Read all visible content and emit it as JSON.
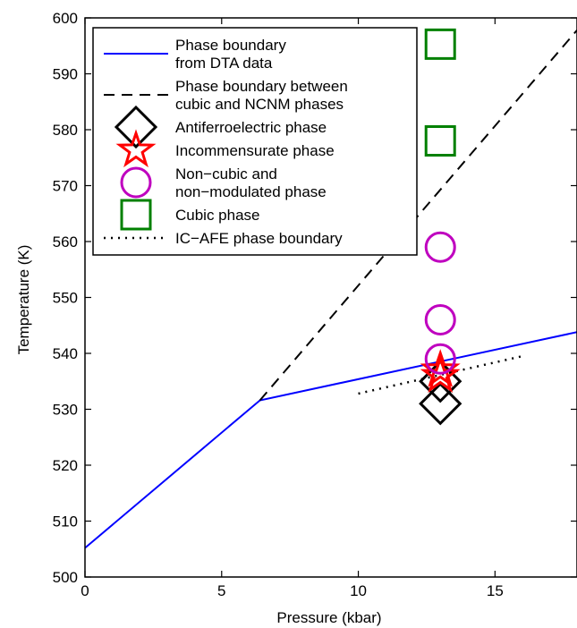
{
  "chart_data": {
    "type": "scatter",
    "xlabel": "Pressure (kbar)",
    "ylabel": "Temperature (K)",
    "xlim": [
      0,
      18
    ],
    "ylim": [
      500,
      600
    ],
    "xticks": [
      0,
      5,
      10,
      15
    ],
    "yticks": [
      500,
      510,
      520,
      530,
      540,
      550,
      560,
      570,
      580,
      590,
      600
    ],
    "grid": false,
    "legend_position": "top-left",
    "lines": [
      {
        "name": "Phase boundary from DTA data",
        "name_lines": [
          "Phase boundary",
          "from DTA data"
        ],
        "style": "solid",
        "color": "#0000ff",
        "x": [
          0,
          6.4,
          18
        ],
        "y": [
          505.2,
          531.6,
          543.8
        ]
      },
      {
        "name": "Phase boundary between cubic and NCNM phases",
        "name_lines": [
          "Phase boundary between",
          "cubic and NCNM phases"
        ],
        "style": "dashed",
        "color": "#000000",
        "x": [
          6.4,
          18
        ],
        "y": [
          531.6,
          597.8
        ]
      },
      {
        "name": "IC−AFE phase boundary",
        "name_lines": [
          "IC−AFE phase boundary"
        ],
        "style": "dotted",
        "color": "#000000",
        "x": [
          10,
          16
        ],
        "y": [
          532.8,
          539.5
        ]
      }
    ],
    "series": [
      {
        "name": "Antiferroelectric phase",
        "name_lines": [
          "Antiferroelectric phase"
        ],
        "marker": "diamond",
        "color": "#000000",
        "x": [
          13,
          13
        ],
        "y": [
          531,
          535
        ]
      },
      {
        "name": "Incommensurate phase",
        "name_lines": [
          "Incommensurate phase"
        ],
        "marker": "star",
        "color": "#ff0000",
        "x": [
          13,
          13
        ],
        "y": [
          537,
          536
        ]
      },
      {
        "name": "Non−cubic and non−modulated phase",
        "name_lines": [
          "Non−cubic and",
          "non−modulated phase"
        ],
        "marker": "circle",
        "color": "#bf00bf",
        "x": [
          13,
          13,
          13
        ],
        "y": [
          559,
          546,
          539
        ]
      },
      {
        "name": "Cubic phase",
        "name_lines": [
          "Cubic phase"
        ],
        "marker": "square",
        "color": "#008000",
        "x": [
          13,
          13
        ],
        "y": [
          595.3,
          578
        ]
      }
    ]
  }
}
